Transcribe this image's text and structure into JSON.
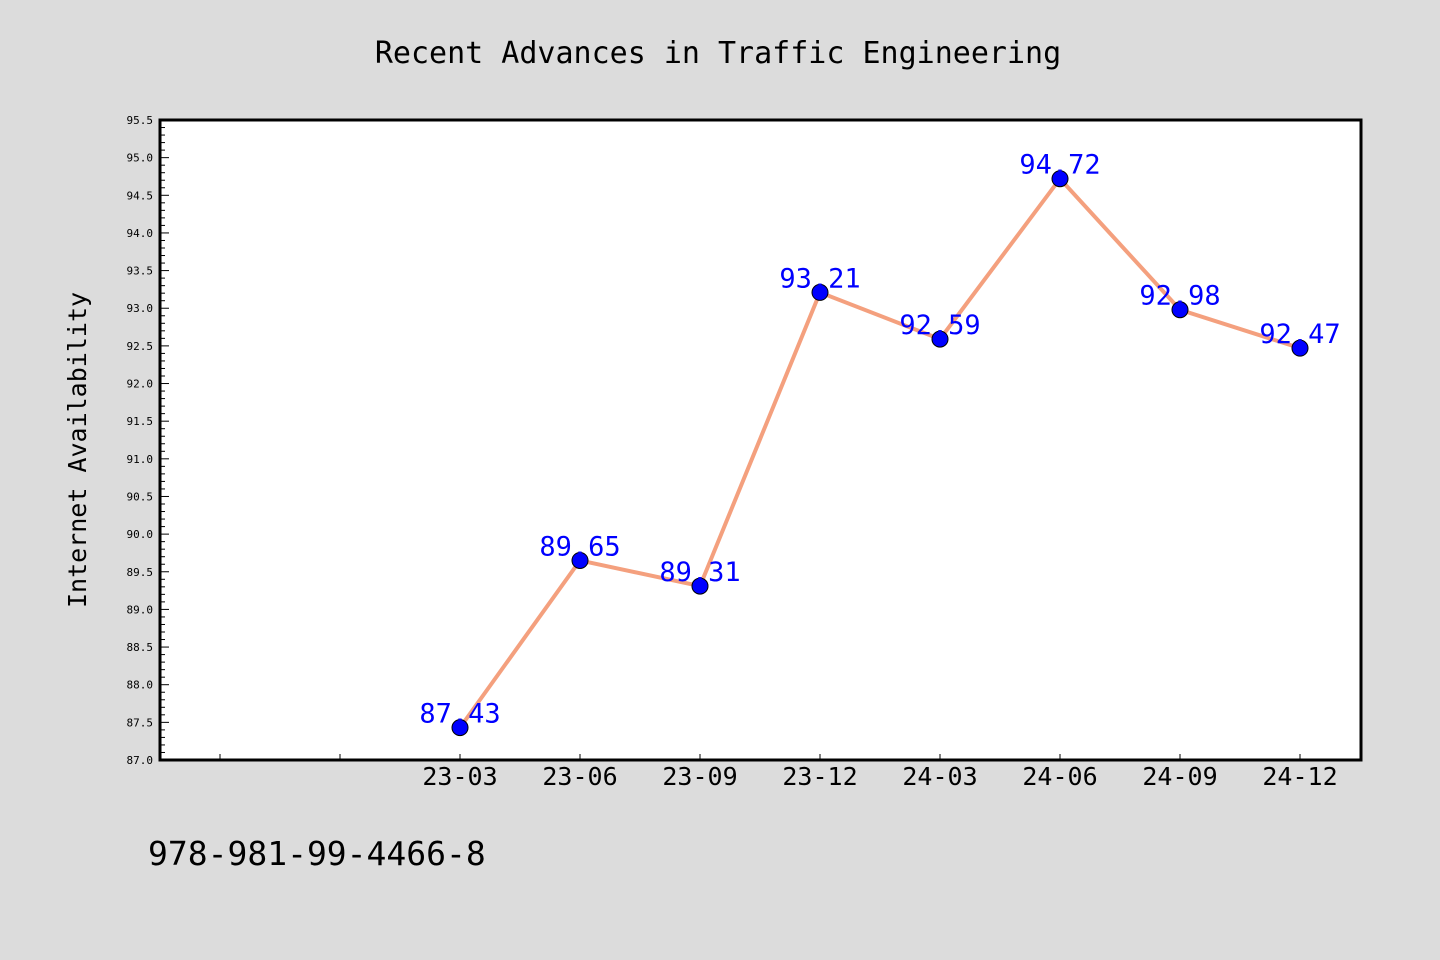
{
  "chart_data": {
    "type": "line",
    "title": "Recent Advances in Traffic Engineering",
    "xlabel": "",
    "ylabel": "Internet Availability",
    "categories": [
      "23-03",
      "23-06",
      "23-09",
      "23-12",
      "24-03",
      "24-06",
      "24-09",
      "24-12"
    ],
    "series": [
      {
        "values": [
          87.43,
          89.65,
          89.31,
          93.21,
          92.59,
          94.72,
          92.98,
          92.47
        ]
      }
    ],
    "data_labels": [
      "87.43",
      "89.65",
      "89.31",
      "93.21",
      "92.59",
      "94.72",
      "92.98",
      "92.47"
    ],
    "ylim": [
      87.0,
      95.5
    ],
    "y_major_step": 0.5,
    "y_ticks": [
      "87.0",
      "87.5",
      "88.0",
      "88.5",
      "89.0",
      "89.5",
      "90.0",
      "90.5",
      "91.0",
      "91.5",
      "92.0",
      "92.5",
      "93.0",
      "93.5",
      "94.0",
      "94.5",
      "95.0",
      "95.5"
    ],
    "x_empty_slots_before_data": 2,
    "grid": false,
    "legend": "none",
    "colors": {
      "background": "#dcdcdc",
      "plot_background": "#ffffff",
      "line": "#f4a07e",
      "marker": "#0000ff",
      "data_label": "#0000ff",
      "axis": "#000000"
    },
    "annotation": "978-981-99-4466-8"
  }
}
